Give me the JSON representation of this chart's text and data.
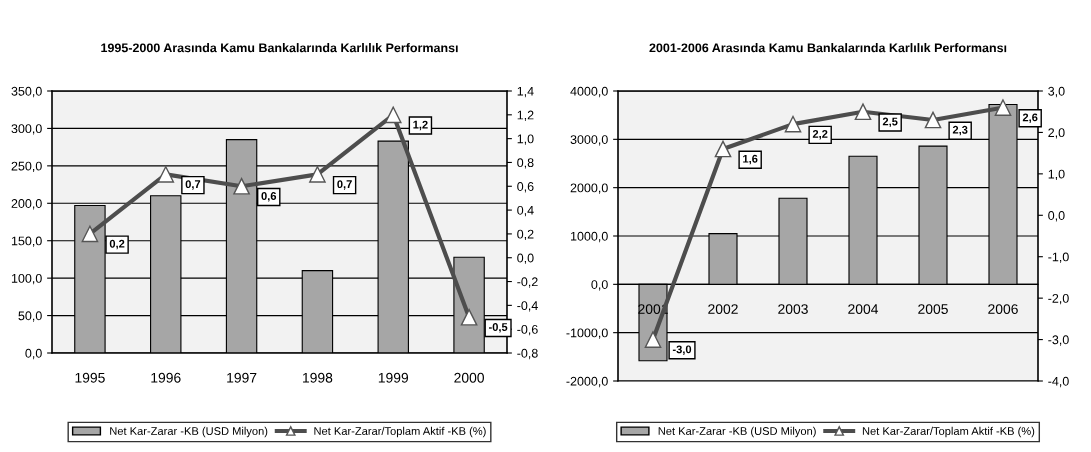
{
  "chart_data": [
    {
      "type": "bar",
      "title": "1995-2000 Arasında Kamu Bankalarında Karlılık Performansı",
      "categories": [
        "1995",
        "1996",
        "1997",
        "1998",
        "1999",
        "2000"
      ],
      "series": [
        {
          "name": "Net Kar-Zarar -KB (USD Milyon)",
          "color": "#a6a6a6",
          "values": [
            197,
            210,
            285,
            110,
            283,
            128
          ]
        },
        {
          "name": "Net Kar-Zarar/Toplam Aktif -KB (%)",
          "type": "line",
          "axis": "y2",
          "color": "#4d4d4d",
          "marker": "triangle",
          "values": [
            0.2,
            0.7,
            0.6,
            0.7,
            1.2,
            -0.5
          ],
          "value_labels": [
            "0,2",
            "0,7",
            "0,6",
            "0,7",
            "1,2",
            "-0,5"
          ]
        }
      ],
      "ylim": [
        0,
        350
      ],
      "yticks": [
        {
          "value": 0,
          "label": "0,0"
        },
        {
          "value": 50,
          "label": "50,0"
        },
        {
          "value": 100,
          "label": "100,0"
        },
        {
          "value": 150,
          "label": "150,0"
        },
        {
          "value": 200,
          "label": "200,0"
        },
        {
          "value": 250,
          "label": "250,0"
        },
        {
          "value": 300,
          "label": "300,0"
        },
        {
          "value": 350,
          "label": "350,0"
        }
      ],
      "y2lim": [
        -0.8,
        1.4
      ],
      "y2ticks": [
        {
          "value": -0.8,
          "label": "-0,8"
        },
        {
          "value": -0.6,
          "label": "-0,6"
        },
        {
          "value": -0.4,
          "label": "-0,4"
        },
        {
          "value": -0.2,
          "label": "-0,2"
        },
        {
          "value": 0,
          "label": "0,0"
        },
        {
          "value": 0.2,
          "label": "0,2"
        },
        {
          "value": 0.4,
          "label": "0,4"
        },
        {
          "value": 0.6,
          "label": "0,6"
        },
        {
          "value": 0.8,
          "label": "0,8"
        },
        {
          "value": 1.0,
          "label": "1,0"
        },
        {
          "value": 1.2,
          "label": "1,2"
        },
        {
          "value": 1.4,
          "label": "1,4"
        }
      ],
      "grid": "y",
      "legend": "bottom"
    },
    {
      "type": "bar",
      "title": "2001-2006 Arasında Kamu Bankalarında Karlılık Performansı",
      "categories": [
        "2001",
        "2002",
        "2003",
        "2004",
        "2005",
        "2006"
      ],
      "series": [
        {
          "name": "Net Kar-Zarar -KB (USD Milyon)",
          "color": "#a6a6a6",
          "values": [
            -1580,
            1050,
            1780,
            2650,
            2860,
            3720
          ]
        },
        {
          "name": "Net Kar-Zarar/Toplam Aktif -KB (%)",
          "type": "line",
          "axis": "y2",
          "color": "#4d4d4d",
          "marker": "triangle",
          "values": [
            -3.0,
            1.6,
            2.2,
            2.5,
            2.3,
            2.6
          ],
          "value_labels": [
            "-3,0",
            "1,6",
            "2,2",
            "2,5",
            "2,3",
            "2,6"
          ]
        }
      ],
      "ylim": [
        -2000,
        4000
      ],
      "yticks": [
        {
          "value": -2000,
          "label": "-2000,0"
        },
        {
          "value": -1000,
          "label": "-1000,0"
        },
        {
          "value": 0,
          "label": "0,0"
        },
        {
          "value": 1000,
          "label": "1000,0"
        },
        {
          "value": 2000,
          "label": "2000,0"
        },
        {
          "value": 3000,
          "label": "3000,0"
        },
        {
          "value": 4000,
          "label": "4000,0"
        }
      ],
      "y2lim": [
        -4,
        3
      ],
      "y2ticks": [
        {
          "value": -4,
          "label": "-4,0"
        },
        {
          "value": -3,
          "label": "-3,0"
        },
        {
          "value": -2,
          "label": "-2,0"
        },
        {
          "value": -1,
          "label": "-1,0"
        },
        {
          "value": 0,
          "label": "0,0"
        },
        {
          "value": 1,
          "label": "1,0"
        },
        {
          "value": 2,
          "label": "2,0"
        },
        {
          "value": 3,
          "label": "3,0"
        }
      ],
      "grid": "y",
      "legend": "bottom"
    }
  ]
}
